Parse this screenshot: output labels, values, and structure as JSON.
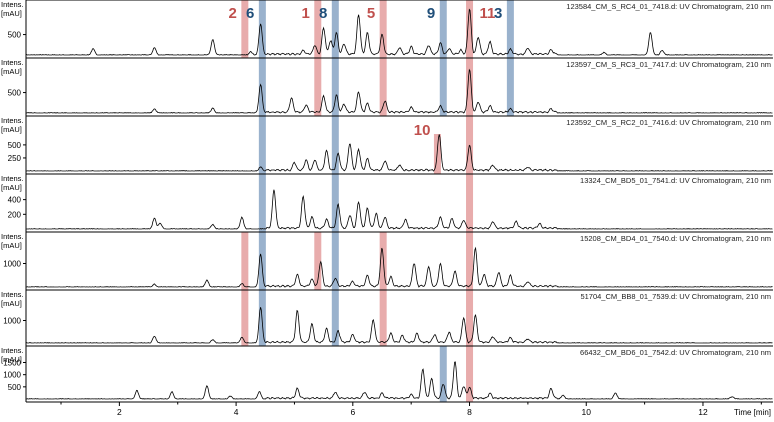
{
  "chart_data": {
    "type": "line",
    "x_axis": {
      "label": "Time [min]",
      "range": [
        0.4,
        13.2
      ],
      "ticks": [
        2,
        4,
        6,
        8,
        10,
        12
      ]
    },
    "y_axis_title": [
      "Intens.",
      "[mAU]"
    ],
    "panels": [
      {
        "title": "123584_CM_S_RC4_01_7418.d: UV Chromatogram, 210 nm",
        "ylim": [
          0,
          1150
        ],
        "yticks": [
          500
        ],
        "peaks": [
          [
            1.55,
            150
          ],
          [
            2.6,
            180
          ],
          [
            3.6,
            380
          ],
          [
            4.25,
            80
          ],
          [
            4.42,
            760
          ],
          [
            5.15,
            90
          ],
          [
            5.35,
            220
          ],
          [
            5.5,
            650
          ],
          [
            5.62,
            330
          ],
          [
            5.72,
            520
          ],
          [
            5.85,
            250
          ],
          [
            6.1,
            980
          ],
          [
            6.25,
            520
          ],
          [
            6.5,
            480
          ],
          [
            6.8,
            160
          ],
          [
            7.0,
            180
          ],
          [
            7.3,
            220
          ],
          [
            7.5,
            280
          ],
          [
            7.65,
            140
          ],
          [
            7.85,
            100
          ],
          [
            8.0,
            1100
          ],
          [
            8.15,
            420
          ],
          [
            8.35,
            300
          ],
          [
            8.7,
            120
          ],
          [
            9.0,
            150
          ],
          [
            9.4,
            110
          ],
          [
            10.3,
            60
          ],
          [
            11.1,
            560
          ],
          [
            11.3,
            120
          ]
        ]
      },
      {
        "title": "123597_CM_S_RC3_01_7417.d: UV Chromatogram, 210 nm",
        "ylim": [
          0,
          1150
        ],
        "yticks": [
          500
        ],
        "peaks": [
          [
            2.6,
            100
          ],
          [
            3.6,
            120
          ],
          [
            4.42,
            700
          ],
          [
            4.95,
            350
          ],
          [
            5.2,
            180
          ],
          [
            5.5,
            400
          ],
          [
            5.72,
            420
          ],
          [
            5.85,
            200
          ],
          [
            6.1,
            500
          ],
          [
            6.25,
            220
          ],
          [
            6.55,
            280
          ],
          [
            7.0,
            120
          ],
          [
            7.5,
            150
          ],
          [
            8.0,
            1050
          ],
          [
            8.15,
            250
          ],
          [
            8.35,
            150
          ],
          [
            8.7,
            80
          ],
          [
            9.4,
            80
          ]
        ]
      },
      {
        "title": "123592_CM_S_RC2_01_7416.d: UV Chromatogram, 210 nm",
        "ylim": [
          0,
          900
        ],
        "yticks": [
          250,
          500
        ],
        "peaks": [
          [
            4.42,
            80
          ],
          [
            5.0,
            150
          ],
          [
            5.2,
            200
          ],
          [
            5.35,
            200
          ],
          [
            5.55,
            380
          ],
          [
            5.75,
            320
          ],
          [
            5.95,
            520
          ],
          [
            6.1,
            400
          ],
          [
            6.25,
            220
          ],
          [
            6.55,
            180
          ],
          [
            6.8,
            100
          ],
          [
            7.48,
            700
          ],
          [
            8.0,
            480
          ],
          [
            8.4,
            100
          ],
          [
            9.0,
            60
          ]
        ]
      },
      {
        "title": "13324_CM_BD5_01_7541.d: UV Chromatogram, 210 nm",
        "ylim": [
          0,
          640
        ],
        "yticks": [
          200,
          400
        ],
        "peaks": [
          [
            2.6,
            150
          ],
          [
            2.7,
            80
          ],
          [
            3.6,
            60
          ],
          [
            4.1,
            160
          ],
          [
            4.65,
            520
          ],
          [
            5.15,
            430
          ],
          [
            5.3,
            150
          ],
          [
            5.55,
            120
          ],
          [
            5.75,
            320
          ],
          [
            5.95,
            180
          ],
          [
            6.1,
            360
          ],
          [
            6.25,
            270
          ],
          [
            6.4,
            200
          ],
          [
            6.55,
            150
          ],
          [
            6.9,
            120
          ],
          [
            7.5,
            150
          ],
          [
            7.7,
            130
          ],
          [
            7.9,
            110
          ],
          [
            8.4,
            90
          ],
          [
            8.8,
            90
          ],
          [
            9.2,
            60
          ]
        ]
      },
      {
        "title": "15208_CM_BD4_01_7540.d: UV Chromatogram, 210 nm",
        "ylim": [
          0,
          2000
        ],
        "yticks": [
          1000
        ],
        "peaks": [
          [
            2.6,
            120
          ],
          [
            3.5,
            300
          ],
          [
            4.1,
            150
          ],
          [
            4.42,
            1400
          ],
          [
            5.05,
            500
          ],
          [
            5.3,
            300
          ],
          [
            5.45,
            1050
          ],
          [
            5.7,
            350
          ],
          [
            6.0,
            200
          ],
          [
            6.25,
            450
          ],
          [
            6.5,
            1600
          ],
          [
            6.65,
            400
          ],
          [
            7.05,
            1000
          ],
          [
            7.3,
            850
          ],
          [
            7.5,
            950
          ],
          [
            7.75,
            650
          ],
          [
            8.1,
            1600
          ],
          [
            8.25,
            500
          ],
          [
            8.5,
            600
          ],
          [
            8.7,
            450
          ],
          [
            9.0,
            200
          ]
        ]
      },
      {
        "title": "51704_CM_BB8_01_7539.d: UV Chromatogram, 210 nm",
        "ylim": [
          0,
          2000
        ],
        "yticks": [
          1000
        ],
        "peaks": [
          [
            2.6,
            300
          ],
          [
            3.6,
            150
          ],
          [
            4.1,
            250
          ],
          [
            4.42,
            1600
          ],
          [
            5.05,
            1400
          ],
          [
            5.3,
            800
          ],
          [
            5.55,
            600
          ],
          [
            5.75,
            500
          ],
          [
            6.0,
            350
          ],
          [
            6.35,
            1000
          ],
          [
            6.65,
            400
          ],
          [
            6.85,
            300
          ],
          [
            7.1,
            400
          ],
          [
            7.4,
            350
          ],
          [
            7.65,
            450
          ],
          [
            7.9,
            1100
          ],
          [
            8.1,
            1200
          ],
          [
            8.4,
            250
          ],
          [
            8.7,
            200
          ],
          [
            9.0,
            150
          ]
        ]
      },
      {
        "title": "66432_CM_BD6_01_7542.d: UV Chromatogram, 210 nm",
        "ylim": [
          0,
          1850
        ],
        "yticks": [
          500,
          1000,
          1500
        ],
        "peaks": [
          [
            2.3,
            350
          ],
          [
            2.9,
            300
          ],
          [
            3.5,
            550
          ],
          [
            3.9,
            120
          ],
          [
            4.4,
            300
          ],
          [
            5.05,
            400
          ],
          [
            5.7,
            250
          ],
          [
            6.2,
            250
          ],
          [
            6.5,
            200
          ],
          [
            7.0,
            150
          ],
          [
            7.2,
            1200
          ],
          [
            7.35,
            800
          ],
          [
            7.55,
            600
          ],
          [
            7.75,
            1500
          ],
          [
            7.9,
            500
          ],
          [
            8.0,
            450
          ],
          [
            8.35,
            200
          ],
          [
            9.4,
            400
          ],
          [
            9.6,
            150
          ],
          [
            10.5,
            250
          ],
          [
            12.5,
            100
          ]
        ]
      }
    ],
    "markers": [
      {
        "label": "2",
        "x": 4.15,
        "color": "#c0504d",
        "fill": "#e6a3a3",
        "panels": [
          0,
          4,
          5
        ]
      },
      {
        "label": "6",
        "x": 4.45,
        "color": "#1f4e79",
        "fill": "#8faac8",
        "panels": [
          0,
          1,
          2,
          3,
          4,
          5
        ]
      },
      {
        "label": "1",
        "x": 5.4,
        "color": "#c0504d",
        "fill": "#e6a3a3",
        "panels": [
          0,
          1,
          4
        ]
      },
      {
        "label": "8",
        "x": 5.7,
        "color": "#1f4e79",
        "fill": "#8faac8",
        "panels": [
          0,
          1,
          2,
          3,
          4,
          5
        ]
      },
      {
        "label": "5",
        "x": 6.52,
        "color": "#c0504d",
        "fill": "#e6a3a3",
        "panels": [
          0,
          1,
          4,
          5
        ]
      },
      {
        "label": "9",
        "x": 7.55,
        "color": "#1f4e79",
        "fill": "#8faac8",
        "panels": [
          0,
          1,
          6
        ]
      },
      {
        "label": "11",
        "x": 8.0,
        "color": "#c0504d",
        "fill": "#e6a3a3",
        "panels": [
          0,
          1,
          2,
          3,
          4,
          5,
          6
        ]
      },
      {
        "label": "3",
        "x": 8.7,
        "color": "#1f4e79",
        "fill": "#8faac8",
        "panels": [
          0,
          1
        ]
      },
      {
        "label": "10",
        "x": 7.45,
        "color": "#c0504d",
        "fill": "#e6a3a3",
        "panels": [
          2
        ]
      }
    ]
  }
}
